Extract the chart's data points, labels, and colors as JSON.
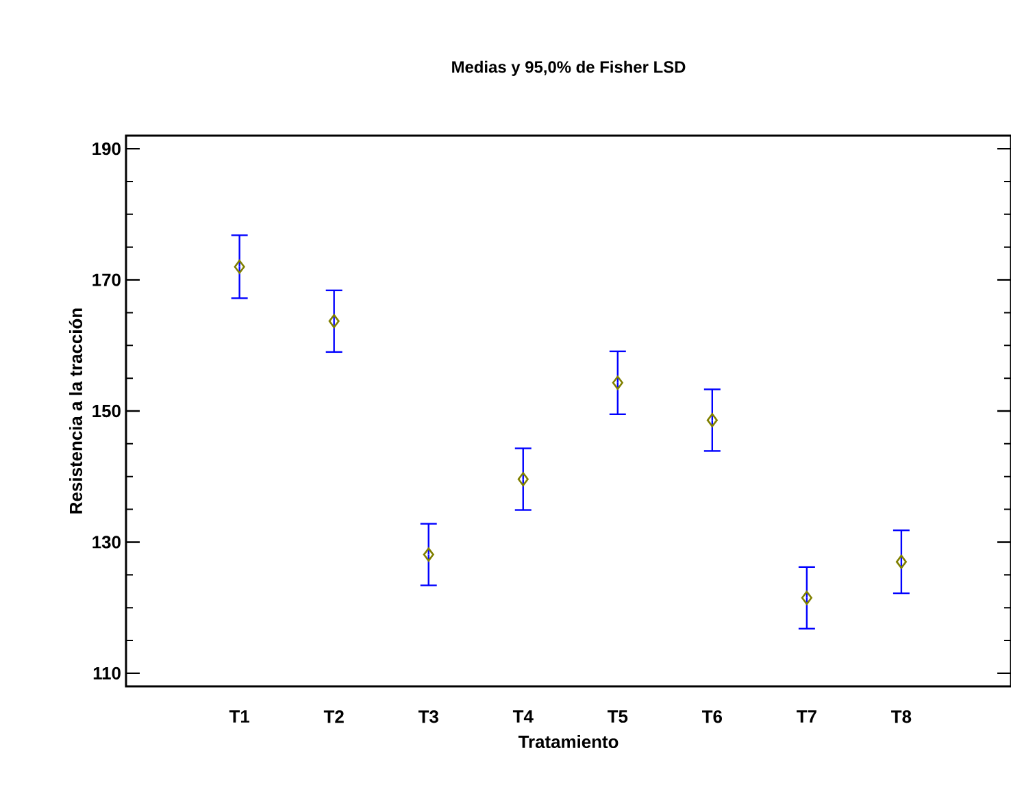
{
  "chart_data": {
    "type": "scatter",
    "title": "Medias y 95,0% de Fisher LSD",
    "xlabel": "Tratamiento",
    "ylabel": "Resistencia a la tracción",
    "categories": [
      "T1",
      "T2",
      "T3",
      "T4",
      "T5",
      "T6",
      "T7",
      "T8"
    ],
    "series": [
      {
        "color": "#808000",
        "values": [
          172.0,
          163.7,
          128.1,
          139.6,
          154.3,
          148.6,
          121.5,
          127.0
        ],
        "errors": [
          4.8,
          4.7,
          4.7,
          4.7,
          4.8,
          4.7,
          4.7,
          4.8
        ]
      }
    ],
    "ylim": [
      108,
      192
    ],
    "yticks": [
      110,
      130,
      150,
      170,
      190
    ],
    "marker": "diamond"
  }
}
